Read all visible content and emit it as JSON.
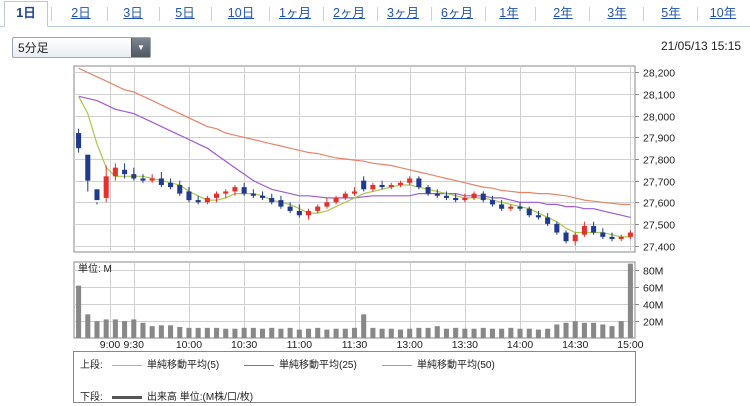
{
  "tabs": [
    {
      "label": "1日",
      "active": true
    },
    {
      "label": "2日"
    },
    {
      "label": "3日"
    },
    {
      "label": "5日"
    },
    {
      "label": "10日"
    },
    {
      "label": "1ヶ月"
    },
    {
      "label": "2ヶ月"
    },
    {
      "label": "3ヶ月"
    },
    {
      "label": "6ヶ月"
    },
    {
      "label": "1年"
    },
    {
      "label": "2年"
    },
    {
      "label": "3年"
    },
    {
      "label": "5年"
    },
    {
      "label": "10年"
    }
  ],
  "interval_select": {
    "value": "5分足"
  },
  "timestamp": "21/05/13 15:15",
  "colors": {
    "up": "#e3322b",
    "down": "#1f3a8f",
    "ma5": "#a9c94a",
    "ma25": "#a05ad6",
    "ma50": "#e8846a",
    "volume": "#888888"
  },
  "legend": {
    "upper_label": "上段:",
    "lower_label": "下段:",
    "ma5": "単純移動平均(5)",
    "ma25": "単純移動平均(25)",
    "ma50": "単純移動平均(50)",
    "volume": "出来高 単位:(M株/口/枚)"
  },
  "volume_unit_label": "単位: M",
  "chart_data": {
    "type": "candlestick",
    "x_ticks": [
      "9:00",
      "9:30",
      "10:00",
      "10:30",
      "11:00",
      "11:30",
      "13:00",
      "13:30",
      "14:00",
      "14:30",
      "15:00"
    ],
    "x_tick_index": [
      0,
      6,
      12,
      18,
      24,
      30,
      36,
      42,
      48,
      54,
      60
    ],
    "price_ylim": [
      27370,
      28230
    ],
    "price_ticks": [
      "28,200",
      "28,100",
      "28,000",
      "27,900",
      "27,800",
      "27,700",
      "27,600",
      "27,500",
      "27,400"
    ],
    "price_tick_values": [
      28200,
      28100,
      28000,
      27900,
      27800,
      27700,
      27600,
      27500,
      27400
    ],
    "volume_ylim": [
      0,
      90
    ],
    "volume_ticks": [
      "80M",
      "60M",
      "40M",
      "20M"
    ],
    "volume_tick_values": [
      80,
      60,
      40,
      20
    ],
    "candles": [
      [
        27920,
        27940,
        27850,
        27830
      ],
      [
        27820,
        27810,
        27700,
        27650
      ],
      [
        27660,
        27600,
        27610,
        27590
      ],
      [
        27620,
        27770,
        27720,
        27600
      ],
      [
        27720,
        27780,
        27760,
        27700
      ],
      [
        27750,
        27780,
        27730,
        27710
      ],
      [
        27730,
        27760,
        27710,
        27700
      ],
      [
        27710,
        27730,
        27700,
        27690
      ],
      [
        27700,
        27730,
        27710,
        27690
      ],
      [
        27710,
        27740,
        27680,
        27670
      ],
      [
        27690,
        27710,
        27670,
        27660
      ],
      [
        27680,
        27700,
        27640,
        27630
      ],
      [
        27650,
        27670,
        27610,
        27600
      ],
      [
        27610,
        27630,
        27600,
        27590
      ],
      [
        27600,
        27630,
        27620,
        27590
      ],
      [
        27620,
        27650,
        27640,
        27600
      ],
      [
        27640,
        27660,
        27650,
        27620
      ],
      [
        27650,
        27680,
        27670,
        27630
      ],
      [
        27670,
        27690,
        27640,
        27630
      ],
      [
        27640,
        27660,
        27630,
        27620
      ],
      [
        27630,
        27650,
        27620,
        27610
      ],
      [
        27620,
        27640,
        27600,
        27590
      ],
      [
        27610,
        27630,
        27580,
        27570
      ],
      [
        27580,
        27600,
        27560,
        27550
      ],
      [
        27560,
        27590,
        27540,
        27530
      ],
      [
        27540,
        27570,
        27560,
        27520
      ],
      [
        27560,
        27590,
        27580,
        27550
      ],
      [
        27580,
        27620,
        27600,
        27570
      ],
      [
        27600,
        27630,
        27620,
        27590
      ],
      [
        27620,
        27650,
        27640,
        27610
      ],
      [
        27640,
        27670,
        27650,
        27630
      ],
      [
        27700,
        27720,
        27660,
        27650
      ],
      [
        27660,
        27690,
        27680,
        27650
      ],
      [
        27680,
        27700,
        27670,
        27660
      ],
      [
        27670,
        27690,
        27680,
        27660
      ],
      [
        27680,
        27700,
        27690,
        27670
      ],
      [
        27690,
        27720,
        27710,
        27680
      ],
      [
        27710,
        27720,
        27670,
        27660
      ],
      [
        27670,
        27680,
        27640,
        27630
      ],
      [
        27640,
        27660,
        27630,
        27620
      ],
      [
        27630,
        27650,
        27620,
        27610
      ],
      [
        27620,
        27640,
        27610,
        27600
      ],
      [
        27610,
        27640,
        27620,
        27600
      ],
      [
        27620,
        27650,
        27640,
        27610
      ],
      [
        27640,
        27650,
        27610,
        27600
      ],
      [
        27610,
        27630,
        27590,
        27580
      ],
      [
        27590,
        27610,
        27570,
        27560
      ],
      [
        27570,
        27590,
        27580,
        27560
      ],
      [
        27580,
        27600,
        27570,
        27560
      ],
      [
        27570,
        27580,
        27540,
        27530
      ],
      [
        27540,
        27560,
        27530,
        27520
      ],
      [
        27530,
        27550,
        27500,
        27490
      ],
      [
        27500,
        27510,
        27460,
        27450
      ],
      [
        27460,
        27470,
        27420,
        27410
      ],
      [
        27420,
        27460,
        27450,
        27400
      ],
      [
        27450,
        27510,
        27490,
        27440
      ],
      [
        27490,
        27510,
        27460,
        27450
      ],
      [
        27460,
        27480,
        27440,
        27430
      ],
      [
        27440,
        27460,
        27430,
        27420
      ],
      [
        27430,
        27450,
        27440,
        27420
      ],
      [
        27440,
        27470,
        27460,
        27430
      ]
    ],
    "ma5": [
      28090,
      28010,
      27870,
      27760,
      27720,
      27720,
      27720,
      27720,
      27710,
      27700,
      27690,
      27680,
      27650,
      27630,
      27610,
      27610,
      27620,
      27640,
      27640,
      27640,
      27630,
      27610,
      27600,
      27590,
      27570,
      27550,
      27550,
      27560,
      27580,
      27600,
      27620,
      27640,
      27650,
      27660,
      27670,
      27680,
      27680,
      27670,
      27660,
      27650,
      27640,
      27630,
      27620,
      27620,
      27620,
      27610,
      27600,
      27590,
      27580,
      27570,
      27550,
      27530,
      27510,
      27480,
      27460,
      27460,
      27460,
      27460,
      27450,
      27440,
      27440
    ],
    "ma25": [
      28090,
      28080,
      28070,
      28050,
      28030,
      28020,
      28010,
      27990,
      27970,
      27950,
      27930,
      27910,
      27890,
      27870,
      27850,
      27820,
      27790,
      27760,
      27730,
      27700,
      27680,
      27660,
      27650,
      27640,
      27630,
      27630,
      27625,
      27620,
      27620,
      27620,
      27620,
      27625,
      27630,
      27630,
      27630,
      27630,
      27630,
      27640,
      27640,
      27640,
      27640,
      27640,
      27630,
      27630,
      27630,
      27620,
      27620,
      27610,
      27600,
      27600,
      27600,
      27590,
      27590,
      27580,
      27580,
      27570,
      27570,
      27560,
      27550,
      27540,
      27530
    ],
    "ma50": [
      28220,
      28200,
      28180,
      28160,
      28140,
      28120,
      28110,
      28090,
      28070,
      28050,
      28030,
      28010,
      27990,
      27970,
      27950,
      27940,
      27920,
      27910,
      27900,
      27890,
      27880,
      27870,
      27860,
      27850,
      27840,
      27830,
      27825,
      27815,
      27805,
      27800,
      27795,
      27790,
      27780,
      27775,
      27770,
      27760,
      27750,
      27740,
      27730,
      27720,
      27710,
      27700,
      27690,
      27680,
      27670,
      27665,
      27655,
      27650,
      27645,
      27645,
      27640,
      27640,
      27635,
      27630,
      27620,
      27610,
      27605,
      27600,
      27595,
      27590,
      27590
    ],
    "volume": [
      62,
      28,
      20,
      22,
      22,
      20,
      22,
      18,
      14,
      15,
      15,
      13,
      12,
      12,
      12,
      12,
      11,
      11,
      12,
      12,
      11,
      12,
      11,
      12,
      10,
      11,
      12,
      10,
      11,
      11,
      12,
      28,
      12,
      11,
      11,
      10,
      11,
      12,
      12,
      14,
      11,
      12,
      11,
      11,
      12,
      11,
      11,
      12,
      11,
      11,
      10,
      11,
      16,
      18,
      20,
      18,
      18,
      16,
      14,
      20,
      88
    ]
  }
}
